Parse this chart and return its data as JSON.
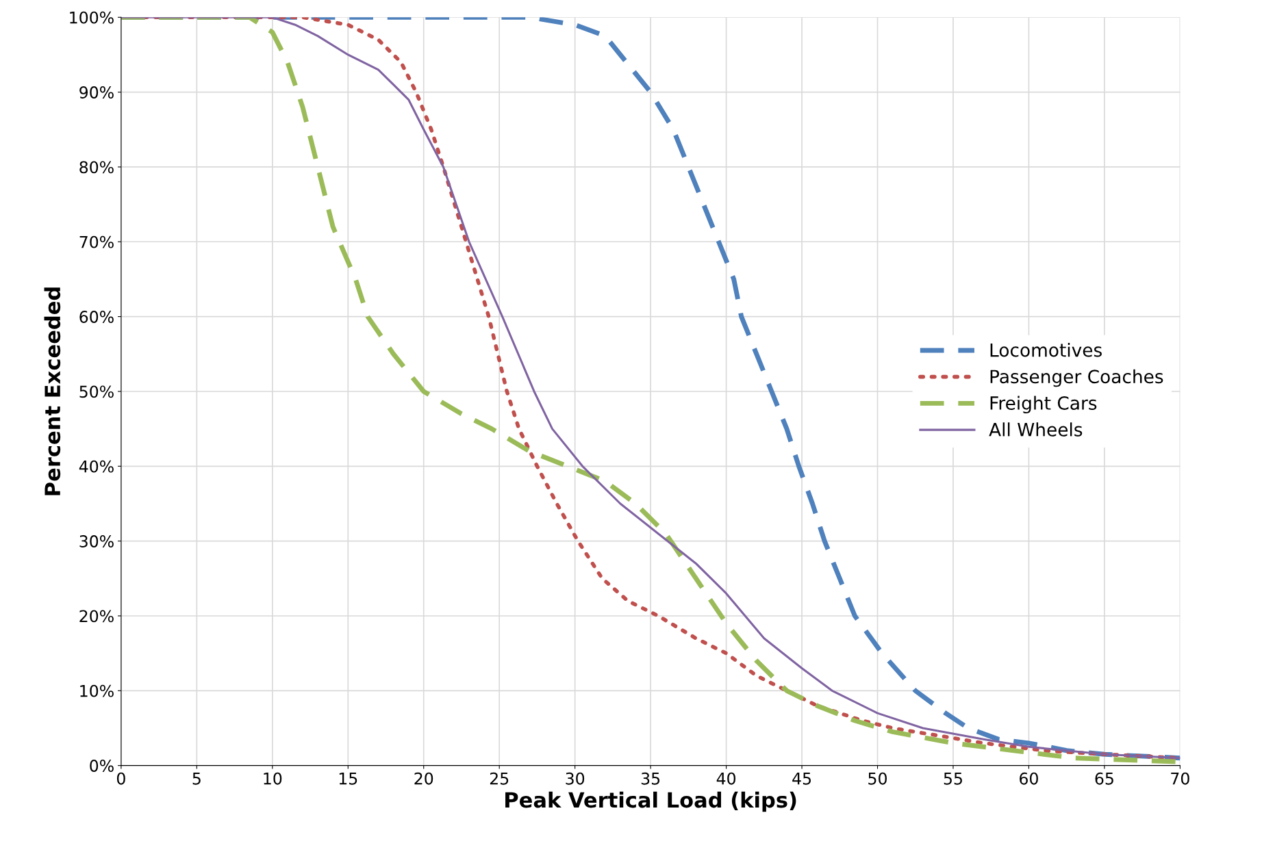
{
  "chart_data": {
    "type": "line",
    "xlabel": "Peak Vertical Load (kips)",
    "ylabel": "Percent Exceeded",
    "xlim": [
      0,
      70
    ],
    "xticks": [
      0,
      5,
      10,
      15,
      20,
      25,
      30,
      35,
      40,
      45,
      50,
      55,
      60,
      65,
      70
    ],
    "ylim": [
      0,
      100
    ],
    "yticks": [
      {
        "value": 0,
        "label": "0%"
      },
      {
        "value": 10,
        "label": "10%"
      },
      {
        "value": 20,
        "label": "20%"
      },
      {
        "value": 30,
        "label": "30%"
      },
      {
        "value": 40,
        "label": "40%"
      },
      {
        "value": 50,
        "label": "50%"
      },
      {
        "value": 60,
        "label": "60%"
      },
      {
        "value": 70,
        "label": "70%"
      },
      {
        "value": 80,
        "label": "80%"
      },
      {
        "value": 90,
        "label": "90%"
      },
      {
        "value": 100,
        "label": "100%"
      }
    ],
    "grid": true,
    "legend": "center right",
    "marker": "none",
    "series": [
      {
        "name": "Locomotives",
        "color": "#4f81bd",
        "line_style": "dashed",
        "x": [
          0,
          27,
          30,
          32,
          33,
          35,
          36.5,
          37.5,
          38.5,
          39.5,
          40.5,
          41,
          42,
          43,
          44,
          44.8,
          45.7,
          46.5,
          47.5,
          48.5,
          50.3,
          52.5,
          54.5,
          56,
          58,
          60,
          62.5,
          65,
          70
        ],
        "values": [
          100,
          100,
          99,
          97.5,
          95,
          90,
          85,
          80,
          75,
          70,
          65,
          60,
          55,
          50,
          45,
          40,
          35,
          30,
          25,
          20,
          15,
          10,
          7,
          5,
          3.5,
          3,
          2,
          1.5,
          1
        ]
      },
      {
        "name": "Passenger Coaches",
        "color": "#c0504d",
        "line_style": "dotted",
        "x": [
          0,
          12,
          15,
          17,
          18.5,
          19.5,
          20.5,
          21.3,
          22.8,
          24.3,
          25.5,
          26.3,
          27.5,
          28.8,
          30.2,
          31.8,
          33.5,
          35.5,
          38,
          40,
          42,
          44,
          46,
          49,
          51,
          54,
          57,
          61,
          65,
          70
        ],
        "values": [
          100,
          100,
          99,
          97,
          94,
          90,
          85,
          80,
          70,
          60,
          50,
          45,
          40,
          35,
          30,
          25,
          22,
          20,
          17,
          15,
          12,
          10,
          8,
          6,
          5,
          4,
          3,
          2,
          1.5,
          1
        ]
      },
      {
        "name": "Freight Cars",
        "color": "#9bbb59",
        "line_style": "dashed",
        "x": [
          0,
          8.5,
          10,
          11,
          12,
          13,
          14,
          15.5,
          16.3,
          18,
          20,
          22.5,
          24.5,
          27,
          29.5,
          32,
          34,
          36,
          38,
          40,
          42,
          44,
          46,
          48.5,
          51,
          55,
          59,
          63,
          70
        ],
        "values": [
          100,
          100,
          98,
          94,
          88,
          80,
          72,
          65,
          60,
          55,
          50,
          47,
          45,
          42,
          40,
          38,
          35,
          31,
          25,
          19,
          14,
          10,
          8,
          6,
          4.5,
          3,
          2,
          1,
          0.5
        ]
      },
      {
        "name": "All Wheels",
        "color": "#8064a2",
        "line_style": "solid",
        "x": [
          0,
          10,
          11.5,
          13,
          15,
          17,
          18,
          19,
          20,
          21.3,
          23,
          25.2,
          27.3,
          28.5,
          30.5,
          33,
          35.5,
          38,
          40,
          42.5,
          45,
          47,
          50,
          53,
          57,
          60,
          65,
          70
        ],
        "values": [
          100,
          100,
          99,
          97.5,
          95,
          93,
          91,
          89,
          85,
          80,
          70,
          60,
          50,
          45,
          40,
          35,
          31,
          27,
          23,
          17,
          13,
          10,
          7,
          5,
          3.5,
          2.5,
          1.5,
          1
        ]
      }
    ]
  }
}
